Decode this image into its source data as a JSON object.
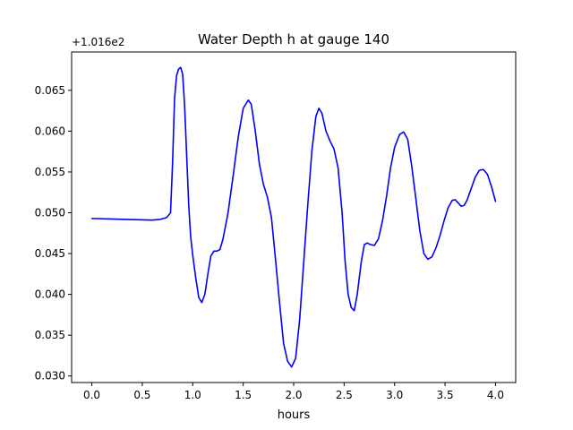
{
  "chart_data": {
    "type": "line",
    "title": "Water Depth h at gauge 140",
    "xlabel": "hours",
    "ylabel": "",
    "offset_label": "+1.016e2",
    "xlim": [
      -0.2,
      4.2
    ],
    "ylim": [
      0.0292,
      0.0697
    ],
    "xticks": [
      0.0,
      0.5,
      1.0,
      1.5,
      2.0,
      2.5,
      3.0,
      3.5,
      4.0
    ],
    "xtick_labels": [
      "0.0",
      "0.5",
      "1.0",
      "1.5",
      "2.0",
      "2.5",
      "3.0",
      "3.5",
      "4.0"
    ],
    "yticks": [
      0.03,
      0.035,
      0.04,
      0.045,
      0.05,
      0.055,
      0.06,
      0.065
    ],
    "ytick_labels": [
      "0.030",
      "0.035",
      "0.040",
      "0.045",
      "0.050",
      "0.055",
      "0.060",
      "0.065"
    ],
    "grid": false,
    "line_color": "#0000ff",
    "series": [
      {
        "x": [
          0.0,
          0.3,
          0.6,
          0.68,
          0.74,
          0.78,
          0.8,
          0.82,
          0.84,
          0.86,
          0.88,
          0.9,
          0.92,
          0.94,
          0.96,
          0.98,
          1.0,
          1.03,
          1.06,
          1.09,
          1.12,
          1.15,
          1.18,
          1.21,
          1.24,
          1.27,
          1.3,
          1.35,
          1.4,
          1.45,
          1.5,
          1.55,
          1.58,
          1.62,
          1.66,
          1.7,
          1.74,
          1.78,
          1.82,
          1.86,
          1.9,
          1.94,
          1.98,
          2.02,
          2.06,
          2.1,
          2.14,
          2.18,
          2.22,
          2.25,
          2.28,
          2.32,
          2.36,
          2.4,
          2.44,
          2.48,
          2.51,
          2.54,
          2.57,
          2.6,
          2.63,
          2.67,
          2.7,
          2.73,
          2.76,
          2.8,
          2.84,
          2.88,
          2.92,
          2.96,
          3.0,
          3.05,
          3.09,
          3.13,
          3.17,
          3.21,
          3.25,
          3.29,
          3.33,
          3.37,
          3.41,
          3.45,
          3.49,
          3.53,
          3.57,
          3.6,
          3.63,
          3.66,
          3.69,
          3.72,
          3.76,
          3.8,
          3.84,
          3.88,
          3.92,
          3.96,
          4.0
        ],
        "y": [
          0.0493,
          0.0492,
          0.0491,
          0.0492,
          0.0494,
          0.05,
          0.056,
          0.064,
          0.0668,
          0.0676,
          0.0678,
          0.067,
          0.063,
          0.057,
          0.051,
          0.047,
          0.0448,
          0.042,
          0.0396,
          0.039,
          0.04,
          0.0425,
          0.0447,
          0.0453,
          0.0453,
          0.0455,
          0.0468,
          0.05,
          0.0545,
          0.0592,
          0.0628,
          0.0638,
          0.0633,
          0.06,
          0.056,
          0.0535,
          0.0519,
          0.0494,
          0.0443,
          0.039,
          0.034,
          0.0318,
          0.0311,
          0.0322,
          0.037,
          0.044,
          0.051,
          0.0575,
          0.0618,
          0.0628,
          0.0622,
          0.06,
          0.0588,
          0.0578,
          0.0555,
          0.05,
          0.044,
          0.04,
          0.0384,
          0.038,
          0.04,
          0.044,
          0.0461,
          0.0463,
          0.0461,
          0.046,
          0.0468,
          0.049,
          0.052,
          0.0555,
          0.058,
          0.0596,
          0.0599,
          0.059,
          0.0557,
          0.0518,
          0.0478,
          0.045,
          0.0443,
          0.0446,
          0.0457,
          0.0472,
          0.049,
          0.0506,
          0.0515,
          0.0516,
          0.0512,
          0.0508,
          0.0509,
          0.0516,
          0.053,
          0.0544,
          0.0552,
          0.0553,
          0.0547,
          0.0532,
          0.0514
        ]
      }
    ]
  }
}
